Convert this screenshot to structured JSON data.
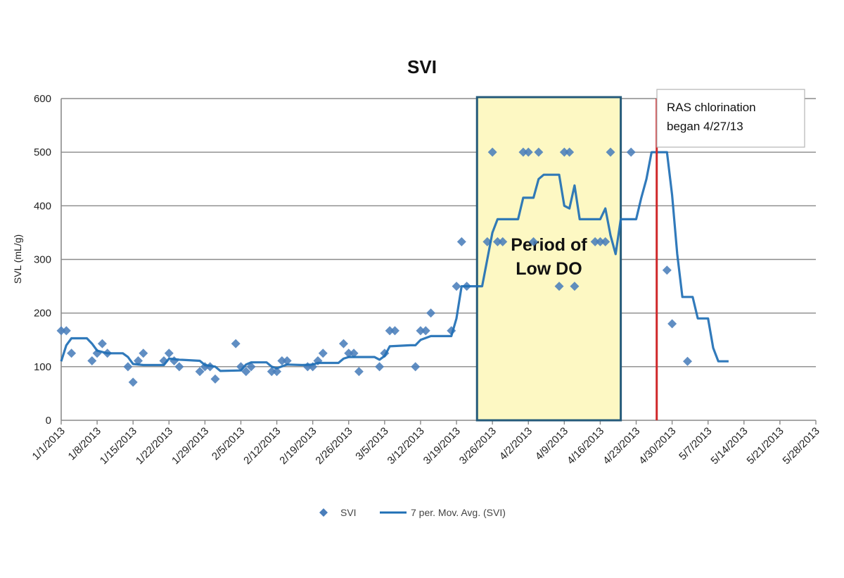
{
  "chart_data": {
    "type": "scatter",
    "title": "SVI",
    "ylabel": "SVL (mL/g)",
    "xlabel": "",
    "ylim": [
      0,
      600
    ],
    "yticks": [
      0,
      100,
      200,
      300,
      400,
      500,
      600
    ],
    "xlim": [
      "2013-01-01",
      "2013-05-28"
    ],
    "xticks": [
      "1/1/2013",
      "1/8/2013",
      "1/15/2013",
      "1/22/2013",
      "1/29/2013",
      "2/5/2013",
      "2/12/2013",
      "2/19/2013",
      "2/26/2013",
      "3/5/2013",
      "3/12/2013",
      "3/19/2013",
      "3/26/2013",
      "4/2/2013",
      "4/9/2013",
      "4/16/2013",
      "4/23/2013",
      "4/30/2013",
      "5/7/2013",
      "5/14/2013",
      "5/21/2013",
      "5/28/2013"
    ],
    "grid": true,
    "legend_position": "bottom",
    "series": [
      {
        "name": "SVI",
        "kind": "scatter",
        "color": "#4a7ebb",
        "points": [
          [
            "2013-01-01",
            167
          ],
          [
            "2013-01-02",
            167
          ],
          [
            "2013-01-03",
            125
          ],
          [
            "2013-01-07",
            111
          ],
          [
            "2013-01-08",
            125
          ],
          [
            "2013-01-09",
            143
          ],
          [
            "2013-01-10",
            125
          ],
          [
            "2013-01-14",
            100
          ],
          [
            "2013-01-15",
            71
          ],
          [
            "2013-01-16",
            111
          ],
          [
            "2013-01-17",
            125
          ],
          [
            "2013-01-21",
            111
          ],
          [
            "2013-01-22",
            125
          ],
          [
            "2013-01-23",
            111
          ],
          [
            "2013-01-24",
            100
          ],
          [
            "2013-01-28",
            91
          ],
          [
            "2013-01-29",
            100
          ],
          [
            "2013-01-30",
            100
          ],
          [
            "2013-01-31",
            77
          ],
          [
            "2013-02-04",
            143
          ],
          [
            "2013-02-05",
            100
          ],
          [
            "2013-02-06",
            91
          ],
          [
            "2013-02-07",
            100
          ],
          [
            "2013-02-11",
            91
          ],
          [
            "2013-02-12",
            91
          ],
          [
            "2013-02-13",
            111
          ],
          [
            "2013-02-14",
            111
          ],
          [
            "2013-02-18",
            100
          ],
          [
            "2013-02-19",
            100
          ],
          [
            "2013-02-20",
            111
          ],
          [
            "2013-02-21",
            125
          ],
          [
            "2013-02-25",
            143
          ],
          [
            "2013-02-26",
            125
          ],
          [
            "2013-02-27",
            125
          ],
          [
            "2013-02-28",
            91
          ],
          [
            "2013-03-04",
            100
          ],
          [
            "2013-03-05",
            125
          ],
          [
            "2013-03-06",
            167
          ],
          [
            "2013-03-07",
            167
          ],
          [
            "2013-03-11",
            100
          ],
          [
            "2013-03-12",
            167
          ],
          [
            "2013-03-13",
            167
          ],
          [
            "2013-03-14",
            200
          ],
          [
            "2013-03-18",
            167
          ],
          [
            "2013-03-19",
            250
          ],
          [
            "2013-03-20",
            333
          ],
          [
            "2013-03-21",
            250
          ],
          [
            "2013-03-25",
            333
          ],
          [
            "2013-03-26",
            500
          ],
          [
            "2013-03-27",
            333
          ],
          [
            "2013-03-28",
            333
          ],
          [
            "2013-04-01",
            500
          ],
          [
            "2013-04-02",
            500
          ],
          [
            "2013-04-03",
            333
          ],
          [
            "2013-04-04",
            500
          ],
          [
            "2013-04-08",
            250
          ],
          [
            "2013-04-09",
            500
          ],
          [
            "2013-04-10",
            500
          ],
          [
            "2013-04-11",
            250
          ],
          [
            "2013-04-15",
            333
          ],
          [
            "2013-04-16",
            333
          ],
          [
            "2013-04-17",
            333
          ],
          [
            "2013-04-18",
            500
          ],
          [
            "2013-04-22",
            500
          ],
          [
            "2013-04-29",
            280
          ],
          [
            "2013-04-30",
            180
          ],
          [
            "2013-05-03",
            110
          ]
        ]
      },
      {
        "name": "7 per. Mov. Avg. (SVI)",
        "kind": "line",
        "color": "#1f6fb5",
        "points": [
          [
            "2013-01-01",
            110
          ],
          [
            "2013-01-02",
            140
          ],
          [
            "2013-01-03",
            153
          ],
          [
            "2013-01-06",
            153
          ],
          [
            "2013-01-07",
            143
          ],
          [
            "2013-01-08",
            130
          ],
          [
            "2013-01-10",
            125
          ],
          [
            "2013-01-13",
            125
          ],
          [
            "2013-01-14",
            118
          ],
          [
            "2013-01-15",
            105
          ],
          [
            "2013-01-17",
            103
          ],
          [
            "2013-01-21",
            103
          ],
          [
            "2013-01-22",
            115
          ],
          [
            "2013-01-24",
            113
          ],
          [
            "2013-01-28",
            111
          ],
          [
            "2013-01-29",
            103
          ],
          [
            "2013-01-31",
            100
          ],
          [
            "2013-02-01",
            92
          ],
          [
            "2013-02-05",
            93
          ],
          [
            "2013-02-06",
            104
          ],
          [
            "2013-02-07",
            108
          ],
          [
            "2013-02-10",
            108
          ],
          [
            "2013-02-11",
            100
          ],
          [
            "2013-02-12",
            97
          ],
          [
            "2013-02-14",
            104
          ],
          [
            "2013-02-17",
            103
          ],
          [
            "2013-02-19",
            104
          ],
          [
            "2013-02-20",
            107
          ],
          [
            "2013-02-24",
            107
          ],
          [
            "2013-02-25",
            115
          ],
          [
            "2013-02-26",
            118
          ],
          [
            "2013-03-03",
            118
          ],
          [
            "2013-03-04",
            113
          ],
          [
            "2013-03-05",
            120
          ],
          [
            "2013-03-06",
            138
          ],
          [
            "2013-03-10",
            140
          ],
          [
            "2013-03-11",
            140
          ],
          [
            "2013-03-12",
            150
          ],
          [
            "2013-03-14",
            157
          ],
          [
            "2013-03-18",
            157
          ],
          [
            "2013-03-19",
            190
          ],
          [
            "2013-03-20",
            250
          ],
          [
            "2013-03-24",
            250
          ],
          [
            "2013-03-25",
            300
          ],
          [
            "2013-03-26",
            350
          ],
          [
            "2013-03-27",
            375
          ],
          [
            "2013-03-31",
            375
          ],
          [
            "2013-04-01",
            415
          ],
          [
            "2013-04-03",
            415
          ],
          [
            "2013-04-04",
            450
          ],
          [
            "2013-04-05",
            458
          ],
          [
            "2013-04-08",
            458
          ],
          [
            "2013-04-09",
            400
          ],
          [
            "2013-04-10",
            395
          ],
          [
            "2013-04-11",
            438
          ],
          [
            "2013-04-12",
            375
          ],
          [
            "2013-04-16",
            375
          ],
          [
            "2013-04-17",
            395
          ],
          [
            "2013-04-18",
            345
          ],
          [
            "2013-04-19",
            310
          ],
          [
            "2013-04-20",
            375
          ],
          [
            "2013-04-23",
            375
          ],
          [
            "2013-04-24",
            415
          ],
          [
            "2013-04-25",
            450
          ],
          [
            "2013-04-26",
            500
          ],
          [
            "2013-04-29",
            500
          ],
          [
            "2013-04-30",
            420
          ],
          [
            "2013-05-01",
            310
          ],
          [
            "2013-05-02",
            230
          ],
          [
            "2013-05-04",
            230
          ],
          [
            "2013-05-05",
            190
          ],
          [
            "2013-05-07",
            190
          ],
          [
            "2013-05-08",
            135
          ],
          [
            "2013-05-09",
            110
          ],
          [
            "2013-05-11",
            110
          ]
        ]
      }
    ],
    "annotations": [
      {
        "kind": "shaded_region",
        "from": "2013-03-23",
        "to": "2013-04-20",
        "label": "Period of\nLow DO",
        "fill": "#fdf8c3",
        "border": "#245a7a"
      },
      {
        "kind": "vline",
        "at": "2013-04-27",
        "color": "#d0282a"
      },
      {
        "kind": "textbox",
        "text": "RAS chlorination\nbegan 4/27/13"
      }
    ]
  },
  "colors": {
    "grid": "#8a8a8a",
    "axis": "#8a8a8a"
  }
}
